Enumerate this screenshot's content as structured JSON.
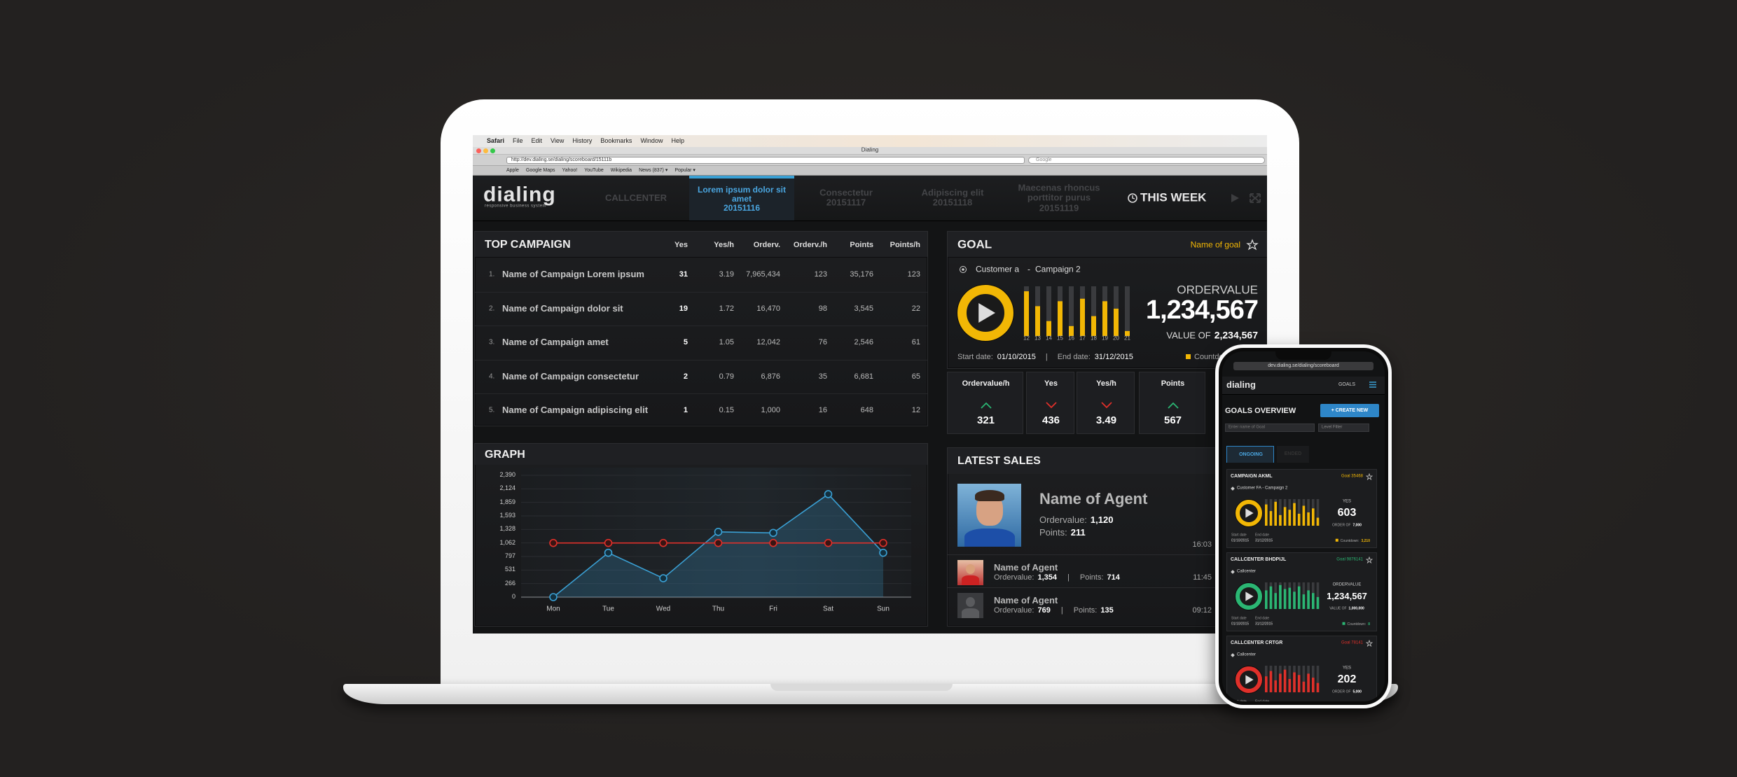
{
  "browser": {
    "menu": [
      "Safari",
      "File",
      "Edit",
      "View",
      "History",
      "Bookmarks",
      "Window",
      "Help"
    ],
    "window_title": "Dialing",
    "url": "http://dev.dialing.se/dialing/scoreboard/15111b",
    "search": "Google",
    "bookmarks": [
      "Apple",
      "Google Maps",
      "Yahoo!",
      "YouTube",
      "Wikipedia",
      "News (837) ▾",
      "Popular ▾"
    ]
  },
  "nav": {
    "logo": "dialing",
    "tagline": "responsive business system",
    "tabs": [
      {
        "name": "CALLCENTER"
      },
      {
        "name": "Lorem ipsum dolor sit amet",
        "date": "20151116",
        "active": true
      },
      {
        "name": "Consectetur",
        "date": "20151117"
      },
      {
        "name": "Adipiscing elit",
        "date": "20151118"
      },
      {
        "name": "Maecenas rhoncus porttitor purus",
        "date": "20151119"
      }
    ],
    "period": "THIS WEEK"
  },
  "top_campaign": {
    "title": "TOP CAMPAIGN",
    "columns": [
      "Yes",
      "Yes/h",
      "Orderv.",
      "Orderv./h",
      "Points",
      "Points/h"
    ],
    "rows": [
      {
        "rank": "1.",
        "name": "Name of Campaign Lorem ipsum",
        "cells": [
          "31",
          "3.19",
          "7,965,434",
          "123",
          "35,176",
          "123"
        ]
      },
      {
        "rank": "2.",
        "name": "Name of Campaign dolor sit",
        "cells": [
          "19",
          "1.72",
          "16,470",
          "98",
          "3,545",
          "22"
        ]
      },
      {
        "rank": "3.",
        "name": "Name of Campaign amet",
        "cells": [
          "5",
          "1.05",
          "12,042",
          "76",
          "2,546",
          "61"
        ]
      },
      {
        "rank": "4.",
        "name": "Name of Campaign consectetur",
        "cells": [
          "2",
          "0.79",
          "6,876",
          "35",
          "6,681",
          "65"
        ]
      },
      {
        "rank": "5.",
        "name": "Name of Campaign adipiscing elit",
        "cells": [
          "1",
          "0.15",
          "1,000",
          "16",
          "648",
          "12"
        ]
      }
    ]
  },
  "goal": {
    "title": "GOAL",
    "goal_name": "Name of goal",
    "customer": "Customer a",
    "separator": "-",
    "campaign": "Campaign 2",
    "days": [
      "12",
      "13",
      "14",
      "15",
      "16",
      "17",
      "18",
      "19",
      "20",
      "21"
    ],
    "values": [
      90,
      60,
      30,
      70,
      20,
      75,
      40,
      70,
      55,
      10
    ],
    "ylim": [
      0,
      100
    ],
    "metric": "ORDERVALUE",
    "value": "1,234,567",
    "target_label": "VALUE OF",
    "target": "2,234,567",
    "start_label": "Start date:",
    "start": "01/10/2015",
    "date_separator": "|",
    "end_label": "End date:",
    "end": "31/12/2015",
    "countdown_label": "Countdown"
  },
  "stats": [
    {
      "label": "Ordervalue/h",
      "value": "321",
      "trend": "up"
    },
    {
      "label": "Yes",
      "value": "436",
      "trend": "down"
    },
    {
      "label": "Yes/h",
      "value": "3.49",
      "trend": "down"
    },
    {
      "label": "Points",
      "value": "567",
      "trend": "up"
    }
  ],
  "graph": {
    "title": "GRAPH",
    "type": "line",
    "categories": [
      "Mon",
      "Tue",
      "Wed",
      "Thu",
      "Fri",
      "Sat",
      "Sun"
    ],
    "series": [
      {
        "color": "#3aa0d4",
        "values": [
          0,
          870,
          370,
          1280,
          1260,
          2020,
          870
        ]
      },
      {
        "color": "#e0302a",
        "values": [
          1062,
          1062,
          1062,
          1062,
          1062,
          1062,
          1062
        ]
      }
    ],
    "ylim": [
      0,
      2390
    ],
    "yticks": [
      0,
      266,
      531,
      797,
      {
        "value": 1062,
        "label": "1,062"
      },
      {
        "value": 1328,
        "label": "1,328"
      },
      {
        "value": 1593,
        "label": "1,593"
      },
      {
        "value": 1859,
        "label": "1,859"
      },
      {
        "value": 2124,
        "label": "2,124"
      },
      {
        "value": 2390,
        "label": "2,390"
      }
    ],
    "grid": true
  },
  "latest_sales": {
    "title": "LATEST SALES",
    "ordervalue_label": "Ordervalue:",
    "points_label": "Points:",
    "separator": "|",
    "featured": {
      "name": "Name of Agent",
      "ordervalue": "1,120",
      "points": "211",
      "time": "16:03"
    },
    "rows": [
      {
        "name": "Name of Agent",
        "ordervalue": "1,354",
        "points": "714",
        "time": "11:45"
      },
      {
        "name": "Name of Agent",
        "ordervalue": "769",
        "points": "135",
        "time": "09:12"
      }
    ]
  },
  "phone": {
    "url": "dev.dialing.se/dialing/scoreboard",
    "logo": "dialing",
    "menu_item": "GOALS",
    "title": "GOALS OVERVIEW",
    "create_button": "+ CREATE NEW",
    "search_placeholder": "Enter name of Goal",
    "filter": "Level Filter",
    "tabs": [
      "ONGOING",
      "ENDED"
    ],
    "cards": [
      {
        "title": "CAMPAIGN AKML",
        "goal": "Goal 35468",
        "subtitle": "Customer FA  -  Campaign 2",
        "color": "#f2b705",
        "metric": "YES",
        "value": "603",
        "target_label": "ORDER OF",
        "target": "7,000",
        "start_label": "Start date",
        "start": "01/10/2015",
        "end_label": "End date",
        "end": "31/12/2015",
        "countdown_label": "Countdown:",
        "countdown": "3,210",
        "bars": [
          80,
          55,
          90,
          40,
          70,
          60,
          85,
          45,
          75,
          50,
          65,
          30
        ]
      },
      {
        "title": "CALLCENTER BHDPIJL",
        "goal": "Goal 9876141",
        "subtitle": "Callcenter",
        "color": "#2bb673",
        "metric": "ORDERVALUE",
        "value": "1,234,567",
        "target_label": "VALUE OF",
        "target": "1,000,000",
        "start_label": "Start date",
        "start": "01/10/2015",
        "end_label": "End date",
        "end": "31/12/2015",
        "countdown_label": "Countdown:",
        "countdown": "8",
        "bars": [
          70,
          85,
          60,
          90,
          75,
          80,
          65,
          85,
          55,
          70,
          60,
          45
        ]
      },
      {
        "title": "CALLCENTER CRTGR",
        "goal": "Goal 78141",
        "subtitle": "Callcenter",
        "color": "#e0302a",
        "metric": "YES",
        "value": "202",
        "target_label": "ORDER OF",
        "target": "5,000",
        "start_label": "Start date",
        "end_label": "End date",
        "bars": [
          60,
          80,
          45,
          70,
          85,
          50,
          75,
          65,
          40,
          70,
          55,
          35
        ]
      }
    ]
  }
}
